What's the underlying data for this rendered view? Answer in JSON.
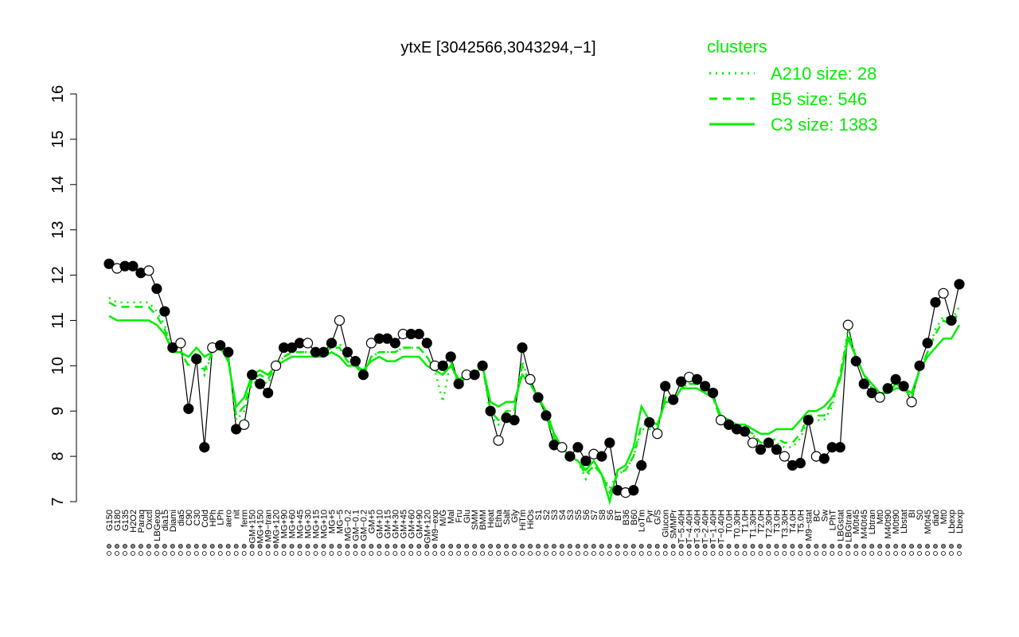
{
  "chart_data": {
    "type": "line",
    "title": "ytxE [3042566,3043294,−1]",
    "xlabel": "",
    "ylabel": "",
    "ylim": [
      7,
      16
    ],
    "yticks": [
      7,
      8,
      9,
      10,
      11,
      12,
      13,
      14,
      15,
      16
    ],
    "grid": false,
    "legend_position": "top-right",
    "legend_title": "clusters",
    "legend_color": "#00ee00",
    "point_color": "#000000",
    "legend": [
      {
        "label": "A210 size: 28",
        "style": "dotted"
      },
      {
        "label": "B5 size: 546",
        "style": "dashed"
      },
      {
        "label": "C3 size: 1383",
        "style": "solid"
      }
    ],
    "x_tick_labels": [
      "G150",
      "G180",
      "G135",
      "H2O2",
      "Paraq",
      "Oxctl",
      "LBGexp",
      "dia15",
      "Diami",
      "dia5",
      "C90",
      "C30",
      "Cold",
      "HPh",
      "LPh",
      "aero",
      "nit",
      "ferm",
      "GM+150",
      "MG+150",
      "M9−tran",
      "MG+120",
      "MG+90",
      "MG+60",
      "MG+45",
      "MG+30",
      "MG+15",
      "MG+10",
      "MG+5",
      "MG−5",
      "MG−0.2",
      "GM−0.1",
      "GM−0.2",
      "GM+5",
      "GM+10",
      "GM+15",
      "GM+30",
      "GM+45",
      "GM+60",
      "GM+90",
      "GM+120",
      "M9−exp",
      "M/G",
      "Mal",
      "Fru",
      "Glu",
      "SMM",
      "BMM",
      "Heat",
      "Etha",
      "Salt",
      "Gly",
      "HiTm",
      "HiOs",
      "S1",
      "S2",
      "S3",
      "S4",
      "S3",
      "S5",
      "S6",
      "S7",
      "S8",
      "S6",
      "BT",
      "B36",
      "B60",
      "LoTm",
      "Pyr",
      "G/S",
      "Glucon",
      "SMMPr",
      "T−5.40H",
      "T−4.40H",
      "T−3.40H",
      "T−2.40H",
      "T−1.40H",
      "T−0.40H",
      "T0.0H",
      "T0.30H",
      "T1.0H",
      "T1.30H",
      "T2.0H",
      "T2.30H",
      "T3.0H",
      "T3.30H",
      "T4.0H",
      "T5.0H",
      "M9−stat",
      "BC",
      "Sw",
      "LPhT",
      "LBGstat",
      "LBGtran",
      "M0t45",
      "M40t45",
      "Lbtran",
      "Mt0",
      "M40t90",
      "M0t90",
      "Lbstat",
      "BI",
      "S0",
      "M0t45",
      "dia0",
      "Mt0",
      "Lbexp",
      "Lbexp"
    ],
    "x_tick_labels_shown": [
      "G150",
      "G180",
      "G135",
      "H2O2",
      "Paraq",
      "Oxctl",
      "LBGexp",
      "dia15",
      "Diami",
      "dia5",
      "C90",
      "C30",
      "Cold",
      "HPh",
      "LPh",
      "aero",
      "nit",
      "ferm",
      "GM+150",
      "MG+150",
      "M9−tran",
      "MG+120",
      "MG+90",
      "MG+60",
      "MG+45",
      "MG+30",
      "MG+15",
      "MG+10",
      "MG+5",
      "MG−5",
      "MG−0.2",
      "GM−0.1",
      "GM−0.2",
      "GM+5",
      "GM+10",
      "GM+15",
      "GM+30",
      "GM+45",
      "GM+60",
      "GM+90",
      "GM+120",
      "M9−exp",
      "M/G",
      "Mal",
      "Fru",
      "Glu",
      "SMM",
      "BMM",
      "Heat",
      "Etha",
      "Salt",
      "Gly",
      "HiTm",
      "HiOs",
      "S1",
      "S2",
      "S3",
      "S4",
      "S3",
      "S5",
      "S6",
      "S7",
      "S8",
      "S6",
      "BT",
      "B36",
      "B60",
      "LoTm",
      "Pyr",
      "G/S",
      "Glucon",
      "SMMPr",
      "T−5.40H",
      "T−4.40H",
      "T−3.40H",
      "T−2.40H",
      "T−1.40H",
      "T−0.40H",
      "T0.0H",
      "T0.30H",
      "T1.0H",
      "T1.30H",
      "T2.0H",
      "T2.30H",
      "T3.0H",
      "T3.30H",
      "T4.0H",
      "T5.0H",
      "M9−stat",
      "BC",
      "Sw",
      "LPhT",
      "LBGstat",
      "LBGtran",
      "M0t45",
      "M40t45",
      "Lbtran",
      "Mt0",
      "M40t90",
      "M0t90",
      "Lbstat",
      "BI",
      "S0",
      "M0t45",
      "dia0",
      "Mt0",
      "Lbexp",
      "Lbexp"
    ],
    "series": [
      {
        "name": "",
        "style": "points",
        "values": [
          12.25,
          12.15,
          12.2,
          12.2,
          12.05,
          12.1,
          11.7,
          11.2,
          10.4,
          10.5,
          9.05,
          10.15,
          8.2,
          10.4,
          10.45,
          10.3,
          8.6,
          8.7,
          9.8,
          9.6,
          9.4,
          10.0,
          10.4,
          10.4,
          10.5,
          10.5,
          10.3,
          10.3,
          10.5,
          11.0,
          10.3,
          10.1,
          9.8,
          10.5,
          10.6,
          10.6,
          10.5,
          10.7,
          10.7,
          10.7,
          10.5,
          10.0,
          10.0,
          10.2,
          9.6,
          9.8,
          9.8,
          10.0,
          9.0,
          8.35,
          8.85,
          8.8,
          10.4,
          9.7,
          9.3,
          8.9,
          8.25,
          8.2,
          8.0,
          8.2,
          7.9,
          8.05,
          8.0,
          8.3,
          7.25,
          7.2,
          7.25,
          7.8,
          8.75,
          8.5,
          9.55,
          9.25,
          9.65,
          9.75,
          9.7,
          9.55,
          9.4,
          8.8,
          8.7,
          8.6,
          8.55,
          8.3,
          8.15,
          8.3,
          8.15,
          8.0,
          7.8,
          7.85,
          8.8,
          8.0,
          7.95,
          8.2,
          8.2,
          10.9,
          10.1,
          9.6,
          9.4,
          9.3,
          9.5,
          9.7,
          9.55,
          9.2,
          10.0,
          10.5,
          11.4,
          11.6,
          11.0,
          11.8
        ]
      },
      {
        "name": "",
        "style": "solid",
        "values": [
          11.1,
          11.0,
          11.0,
          11.0,
          11.0,
          11.0,
          10.9,
          10.7,
          10.3,
          10.3,
          10.2,
          10.4,
          10.2,
          10.3,
          10.4,
          10.1,
          9.1,
          9.3,
          9.8,
          9.9,
          9.8,
          10.0,
          10.1,
          10.2,
          10.2,
          10.2,
          10.2,
          10.2,
          10.3,
          10.2,
          10.0,
          10.0,
          9.9,
          10.1,
          10.2,
          10.1,
          10.1,
          10.2,
          10.2,
          10.2,
          10.0,
          9.9,
          9.8,
          10.0,
          9.7,
          9.8,
          9.8,
          10.0,
          9.2,
          9.1,
          9.2,
          9.2,
          9.8,
          9.6,
          9.3,
          9.0,
          8.5,
          8.2,
          8.0,
          7.9,
          7.7,
          7.9,
          7.6,
          7.0,
          7.7,
          7.8,
          8.2,
          9.1,
          8.8,
          8.7,
          9.2,
          9.2,
          9.5,
          9.5,
          9.5,
          9.4,
          9.3,
          8.9,
          8.8,
          8.7,
          8.7,
          8.6,
          8.5,
          8.5,
          8.6,
          8.6,
          8.6,
          8.8,
          9.0,
          9.0,
          9.1,
          9.3,
          9.7,
          10.6,
          10.2,
          9.8,
          9.6,
          9.4,
          9.4,
          9.5,
          9.5,
          9.4,
          9.9,
          10.2,
          10.4,
          10.6,
          10.6,
          10.9
        ]
      },
      {
        "name": "",
        "style": "dashed",
        "values": [
          11.4,
          11.3,
          11.3,
          11.3,
          11.3,
          11.3,
          11.1,
          10.8,
          10.3,
          10.3,
          10.0,
          10.3,
          9.9,
          10.3,
          10.4,
          10.2,
          8.9,
          9.1,
          9.7,
          9.8,
          9.7,
          10.0,
          10.2,
          10.3,
          10.3,
          10.3,
          10.3,
          10.3,
          10.4,
          10.4,
          10.1,
          10.0,
          9.8,
          10.2,
          10.3,
          10.3,
          10.3,
          10.4,
          10.4,
          10.4,
          10.2,
          9.9,
          9.8,
          10.1,
          9.6,
          9.8,
          9.8,
          10.0,
          9.0,
          8.8,
          9.0,
          9.0,
          10.0,
          9.6,
          9.3,
          8.9,
          8.4,
          8.2,
          8.0,
          7.9,
          7.6,
          7.8,
          7.6,
          7.2,
          7.6,
          7.7,
          8.0,
          8.7,
          8.7,
          8.6,
          9.3,
          9.2,
          9.5,
          9.6,
          9.6,
          9.5,
          9.3,
          8.8,
          8.7,
          8.6,
          8.6,
          8.5,
          8.3,
          8.3,
          8.4,
          8.3,
          8.3,
          8.5,
          8.9,
          8.9,
          8.9,
          9.2,
          9.8,
          10.7,
          10.2,
          9.8,
          9.5,
          9.4,
          9.4,
          9.6,
          9.5,
          9.3,
          9.9,
          10.3,
          10.7,
          11.0,
          10.9,
          11.2
        ]
      },
      {
        "name": "",
        "style": "dotted",
        "values": [
          11.5,
          11.4,
          11.4,
          11.4,
          11.4,
          11.4,
          11.2,
          10.9,
          10.3,
          10.3,
          10.0,
          10.3,
          9.8,
          10.3,
          10.4,
          10.2,
          8.8,
          9.0,
          9.6,
          9.7,
          9.6,
          10.0,
          10.2,
          10.3,
          10.3,
          10.3,
          10.3,
          10.3,
          10.4,
          10.5,
          10.1,
          10.0,
          9.8,
          10.2,
          10.3,
          10.3,
          10.3,
          10.4,
          10.4,
          10.4,
          10.2,
          9.9,
          9.2,
          10.1,
          9.5,
          9.8,
          9.8,
          10.0,
          8.9,
          8.7,
          9.0,
          9.0,
          10.1,
          9.6,
          9.3,
          8.9,
          8.4,
          8.2,
          8.0,
          7.9,
          7.5,
          7.8,
          7.6,
          7.3,
          7.6,
          7.7,
          8.0,
          8.6,
          8.6,
          8.6,
          9.3,
          9.2,
          9.5,
          9.6,
          9.6,
          9.5,
          9.3,
          8.8,
          8.7,
          8.6,
          8.6,
          8.5,
          8.2,
          8.2,
          8.3,
          8.2,
          8.2,
          8.4,
          8.8,
          8.8,
          8.8,
          9.1,
          9.8,
          10.8,
          10.2,
          9.8,
          9.5,
          9.4,
          9.4,
          9.6,
          9.5,
          9.3,
          9.9,
          10.3,
          10.8,
          11.1,
          11.0,
          11.3
        ]
      }
    ]
  }
}
